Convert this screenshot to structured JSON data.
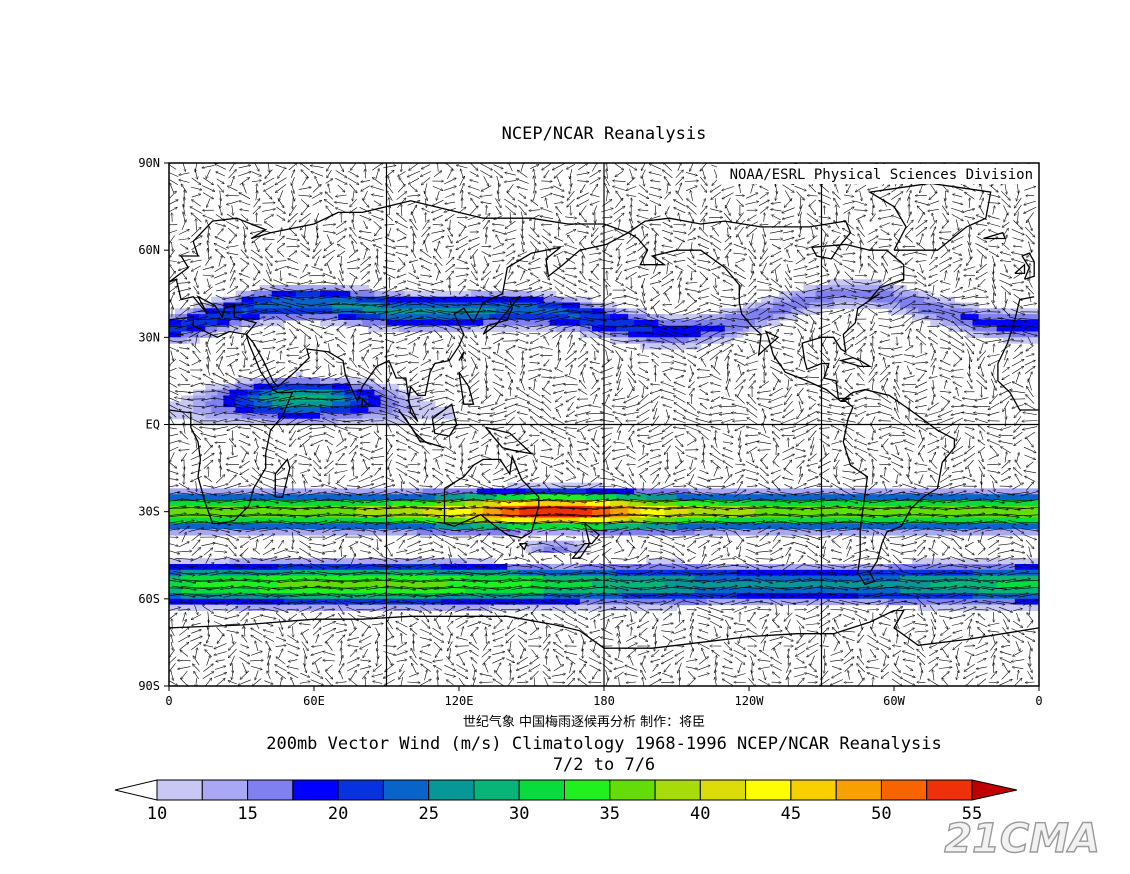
{
  "title": "NCEP/NCAR Reanalysis",
  "credit": "NOAA/ESRL Physical Sciences Division",
  "lat_labels": [
    "90N",
    "60N",
    "30N",
    "EQ",
    "30S",
    "60S",
    "90S"
  ],
  "lon_labels": [
    "0",
    "60E",
    "120E",
    "180",
    "120W",
    "60W",
    "0"
  ],
  "chinese_note": "世纪气象  中国梅雨逐候再分析  制作：将臣",
  "subtitle": "200mb Vector Wind (m/s) Climatology 1968-1996 NCEP/NCAR Reanalysis",
  "period": "7/2  to 7/6",
  "colorbar": {
    "labels": [
      "10",
      "15",
      "20",
      "25",
      "30",
      "35",
      "40",
      "45",
      "50",
      "55"
    ],
    "under_color": "#ffffff",
    "over_color": "#c00000",
    "colors": [
      "#c8c8f4",
      "#a8a8f4",
      "#8080f0",
      "#0000ff",
      "#0832e0",
      "#0864c8",
      "#089696",
      "#08b478",
      "#08dc3c",
      "#20f020",
      "#64dc08",
      "#a8dc08",
      "#dcdc08",
      "#fffe00",
      "#f8d000",
      "#f8a000",
      "#f86400",
      "#f03008"
    ]
  },
  "watermark": "21CMA",
  "map_data": {
    "type": "wind-speed-field",
    "lon_range": [
      0,
      360
    ],
    "lat_range": [
      -90,
      90
    ],
    "jets": [
      {
        "name": "NH subtropical jet",
        "lat_center": 38,
        "peak_speed": 30
      },
      {
        "name": "SH subtropical jet",
        "lat_center": -30,
        "peak_speed": 55
      },
      {
        "name": "SH polar jet",
        "lat_center": -55,
        "peak_speed": 45
      }
    ]
  }
}
